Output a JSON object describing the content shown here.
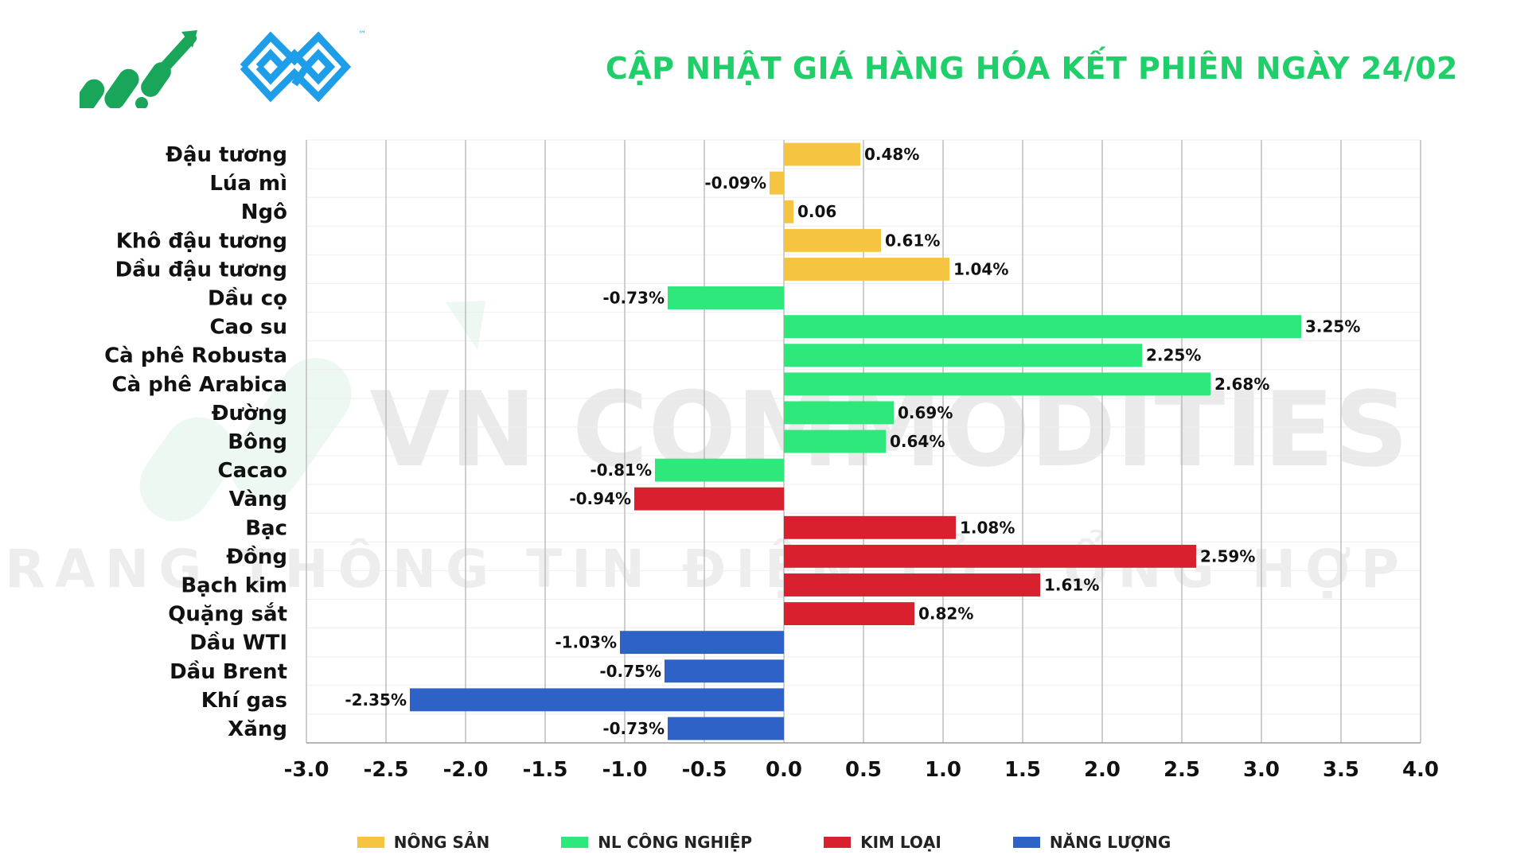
{
  "header": {
    "title": "CẬP NHẬT GIÁ HÀNG HÓA KẾT PHIÊN NGÀY 24/02"
  },
  "watermark": {
    "line1": "VN COMMODITIES",
    "line2": "TRANG THÔNG TIN ĐIỆN TỬ TỔNG HỢP"
  },
  "logo": {
    "trademark": "™"
  },
  "colors": {
    "title": "#1fcf6a",
    "nong_san": "#f5c542",
    "nl_cong_nghiep": "#2ee87c",
    "kim_loai": "#d8202f",
    "nang_luong": "#2f62c6",
    "logo_green": "#1aa65a",
    "logo_blue": "#1e9ee8"
  },
  "legend": [
    {
      "key": "nong_san",
      "label": "NÔNG SẢN"
    },
    {
      "key": "nl_cong_nghiep",
      "label": "NL CÔNG NGHIỆP"
    },
    {
      "key": "kim_loai",
      "label": "KIM LOẠI"
    },
    {
      "key": "nang_luong",
      "label": "NĂNG LƯỢNG"
    }
  ],
  "chart_data": {
    "type": "bar",
    "orientation": "horizontal",
    "title": "CẬP NHẬT GIÁ HÀNG HÓA KẾT PHIÊN NGÀY 24/02",
    "xlim": [
      -3.0,
      4.0
    ],
    "x_ticks": [
      "-3.0",
      "-2.5",
      "-2.0",
      "-1.5",
      "-1.0",
      "-0.5",
      "0.0",
      "0.5",
      "1.0",
      "1.5",
      "2.0",
      "2.5",
      "3.0",
      "3.5",
      "4.0"
    ],
    "grid": true,
    "legend_position": "bottom",
    "bars": [
      {
        "category": "Đậu tương",
        "value": 0.48,
        "label": "0.48%",
        "group": "nong_san"
      },
      {
        "category": "Lúa mì",
        "value": -0.09,
        "label": "-0.09%",
        "group": "nong_san"
      },
      {
        "category": "Ngô",
        "value": 0.06,
        "label": "0.06",
        "group": "nong_san"
      },
      {
        "category": "Khô đậu tương",
        "value": 0.61,
        "label": "0.61%",
        "group": "nong_san"
      },
      {
        "category": "Dầu đậu tương",
        "value": 1.04,
        "label": "1.04%",
        "group": "nong_san"
      },
      {
        "category": "Dầu cọ",
        "value": -0.73,
        "label": "-0.73%",
        "group": "nl_cong_nghiep"
      },
      {
        "category": "Cao su",
        "value": 3.25,
        "label": "3.25%",
        "group": "nl_cong_nghiep"
      },
      {
        "category": "Cà phê Robusta",
        "value": 2.25,
        "label": "2.25%",
        "group": "nl_cong_nghiep"
      },
      {
        "category": "Cà phê Arabica",
        "value": 2.68,
        "label": "2.68%",
        "group": "nl_cong_nghiep"
      },
      {
        "category": "Đường",
        "value": 0.69,
        "label": "0.69%",
        "group": "nl_cong_nghiep"
      },
      {
        "category": "Bông",
        "value": 0.64,
        "label": "0.64%",
        "group": "nl_cong_nghiep"
      },
      {
        "category": "Cacao",
        "value": -0.81,
        "label": "-0.81%",
        "group": "nl_cong_nghiep"
      },
      {
        "category": "Vàng",
        "value": -0.94,
        "label": "-0.94%",
        "group": "kim_loai"
      },
      {
        "category": "Bạc",
        "value": 1.08,
        "label": "1.08%",
        "group": "kim_loai"
      },
      {
        "category": "Đồng",
        "value": 2.59,
        "label": "2.59%",
        "group": "kim_loai"
      },
      {
        "category": "Bạch kim",
        "value": 1.61,
        "label": "1.61%",
        "group": "kim_loai"
      },
      {
        "category": "Quặng sắt",
        "value": 0.82,
        "label": "0.82%",
        "group": "kim_loai"
      },
      {
        "category": "Dầu WTI",
        "value": -1.03,
        "label": "-1.03%",
        "group": "nang_luong"
      },
      {
        "category": "Dầu Brent",
        "value": -0.75,
        "label": "-0.75%",
        "group": "nang_luong"
      },
      {
        "category": "Khí gas",
        "value": -2.35,
        "label": "-2.35%",
        "group": "nang_luong"
      },
      {
        "category": "Xăng",
        "value": -0.73,
        "label": "-0.73%",
        "group": "nang_luong"
      }
    ]
  }
}
